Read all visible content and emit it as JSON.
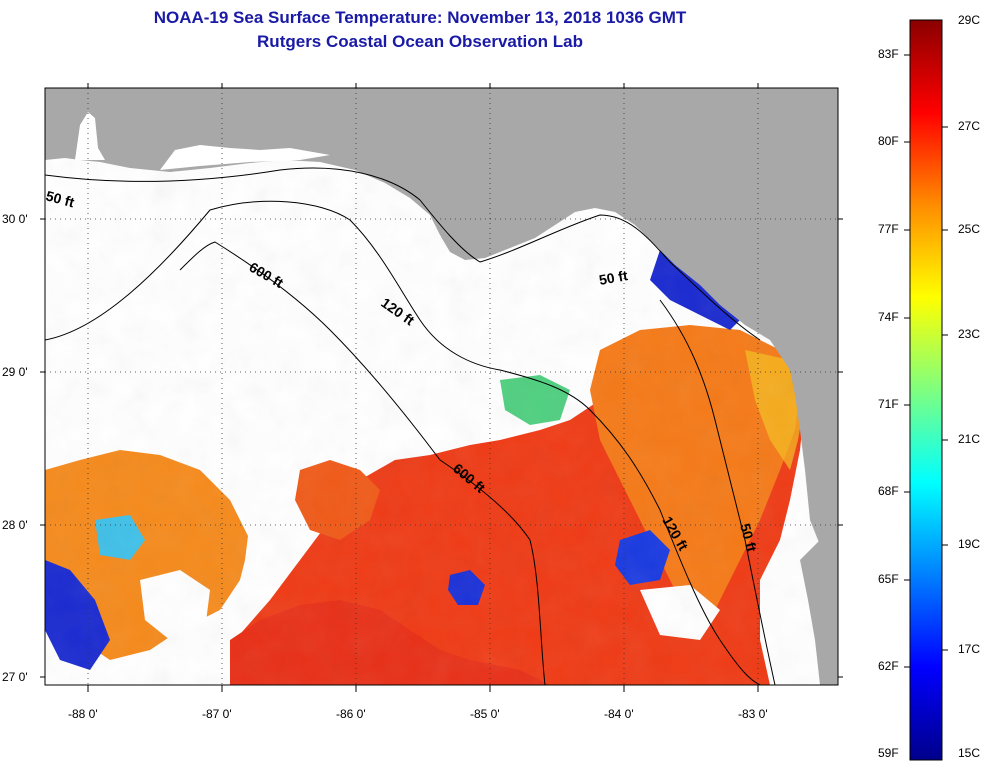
{
  "header": {
    "title": "NOAA-19 Sea Surface Temperature:  November 13, 2018 1036 GMT",
    "subtitle": "Rutgers Coastal Ocean Observation Lab"
  },
  "axes": {
    "lat_labels": [
      "30 0'",
      "29 0'",
      "28 0'",
      "27 0'"
    ],
    "lon_labels": [
      "-88 0'",
      "-87 0'",
      "-86 0'",
      "-85 0'",
      "-84 0'",
      "-83 0'"
    ]
  },
  "contours": {
    "labels": [
      "50 ft",
      "600 ft",
      "120 ft",
      "50 ft",
      "600 ft",
      "120 ft",
      "50 ft"
    ]
  },
  "colorbar": {
    "fahrenheit": [
      "83F",
      "80F",
      "77F",
      "74F",
      "71F",
      "68F",
      "65F",
      "62F",
      "59F"
    ],
    "celsius": [
      "29C",
      "27C",
      "25C",
      "23C",
      "21C",
      "19C",
      "17C",
      "15C"
    ],
    "gradient_colors": [
      "#8b0000",
      "#ff0000",
      "#ff8c00",
      "#ffff00",
      "#7fff7f",
      "#00ffff",
      "#0080ff",
      "#0000ff",
      "#00008b"
    ]
  },
  "colors": {
    "land": "#a8a8a8",
    "cloud": "#ffffff",
    "warm": "#f03a1a",
    "title": "#1a1aa6"
  }
}
